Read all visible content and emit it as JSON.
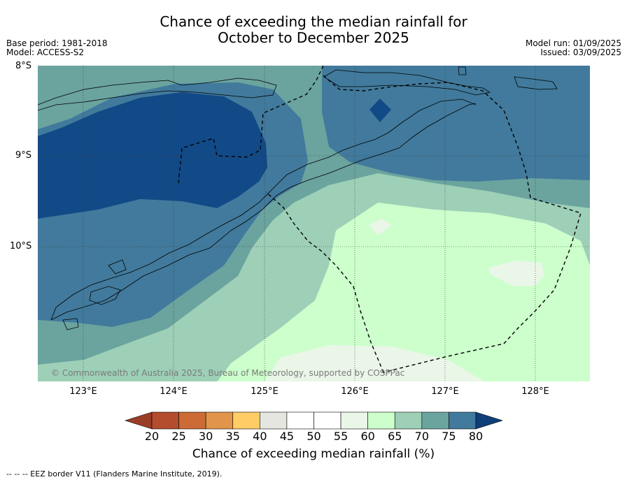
{
  "title": {
    "line1": "Chance of exceeding the median rainfall for",
    "line2": "October to December 2025"
  },
  "meta": {
    "base_period": "Base period: 1981-2018",
    "model": "Model: ACCESS-S2",
    "model_run": "Model run: 01/09/2025",
    "issued": "Issued: 03/09/2025"
  },
  "map": {
    "lat_labels": [
      "8°S",
      "9°S",
      "10°S"
    ],
    "lon_labels": [
      "123°E",
      "124°E",
      "125°E",
      "126°E",
      "127°E",
      "128°E"
    ],
    "copyright": "© Commonwealth of Australia 2025, Bureau of Meteorology, supported by COSPPac"
  },
  "colorbar": {
    "ticks": [
      "20",
      "25",
      "30",
      "35",
      "40",
      "45",
      "50",
      "55",
      "60",
      "65",
      "70",
      "75",
      "80"
    ],
    "colors": [
      "#b34d2e",
      "#cc6b35",
      "#e0954a",
      "#ffcc66",
      "#e6e6e0",
      "#ffffff",
      "#ffffff",
      "#eaf6e8",
      "#ccffcc",
      "#9dd0b6",
      "#6ba39f",
      "#417a9c",
      "#124a87"
    ],
    "under_color": "#993d28",
    "over_color": "#0e3f78",
    "label": "Chance of exceeding median rainfall (%)"
  },
  "footnote": "--  --  -- EEZ border V11 (Flanders Marine Institute, 2019)."
}
